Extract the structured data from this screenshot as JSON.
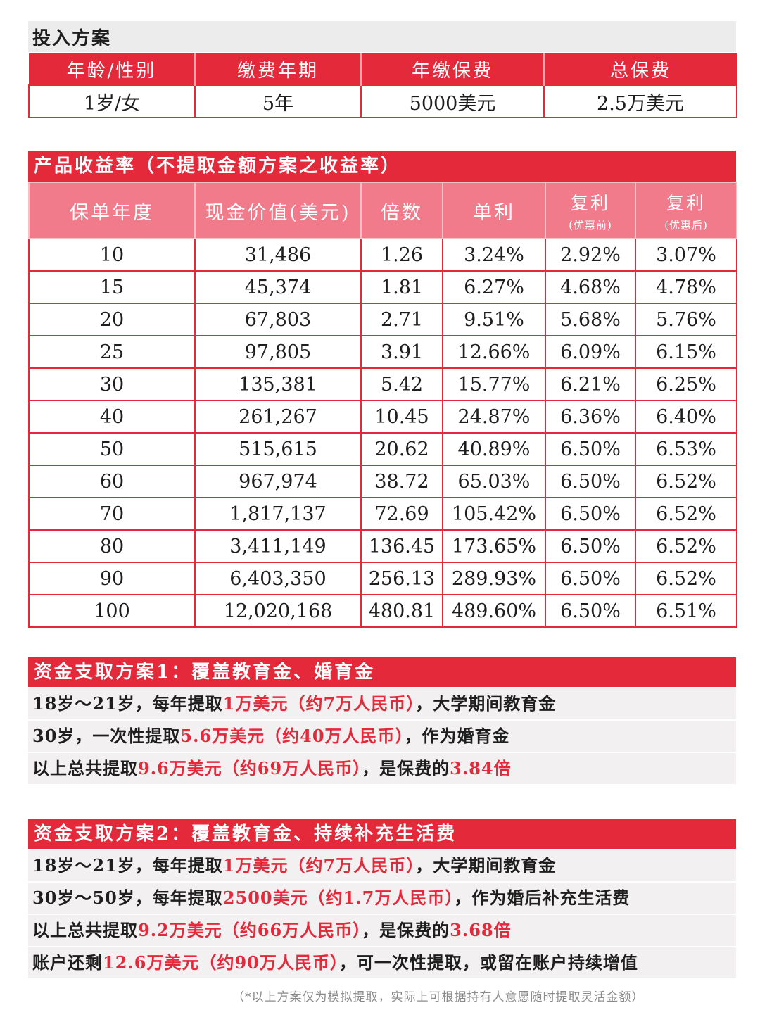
{
  "investment": {
    "title": "投入方案",
    "headers": [
      "年龄/性别",
      "缴费年期",
      "年缴保费",
      "总保费"
    ],
    "values": [
      "1岁/女",
      "5年",
      "5000美元",
      "2.5万美元"
    ]
  },
  "returns": {
    "title": "产品收益率（不提取金额方案之收益率）",
    "headers": {
      "year": "保单年度",
      "cash": "现金价值(美元)",
      "multiple": "倍数",
      "simple": "单利",
      "compound_before": "复利",
      "compound_before_sub": "(优惠前)",
      "compound_after": "复利",
      "compound_after_sub": "(优惠后)"
    },
    "rows": [
      [
        "10",
        "31,486",
        "1.26",
        "3.24%",
        "2.92%",
        "3.07%"
      ],
      [
        "15",
        "45,374",
        "1.81",
        "6.27%",
        "4.68%",
        "4.78%"
      ],
      [
        "20",
        "67,803",
        "2.71",
        "9.51%",
        "5.68%",
        "5.76%"
      ],
      [
        "25",
        "97,805",
        "3.91",
        "12.66%",
        "6.09%",
        "6.15%"
      ],
      [
        "30",
        "135,381",
        "5.42",
        "15.77%",
        "6.21%",
        "6.25%"
      ],
      [
        "40",
        "261,267",
        "10.45",
        "24.87%",
        "6.36%",
        "6.40%"
      ],
      [
        "50",
        "515,615",
        "20.62",
        "40.89%",
        "6.50%",
        "6.53%"
      ],
      [
        "60",
        "967,974",
        "38.72",
        "65.03%",
        "6.50%",
        "6.52%"
      ],
      [
        "70",
        "1,817,137",
        "72.69",
        "105.42%",
        "6.50%",
        "6.52%"
      ],
      [
        "80",
        "3,411,149",
        "136.45",
        "173.65%",
        "6.50%",
        "6.52%"
      ],
      [
        "90",
        "6,403,350",
        "256.13",
        "289.93%",
        "6.50%",
        "6.52%"
      ],
      [
        "100",
        "12,020,168",
        "480.81",
        "489.60%",
        "6.50%",
        "6.51%"
      ]
    ]
  },
  "plan1": {
    "title": "资金支取方案1：覆盖教育金、婚育金",
    "lines": [
      {
        "a": "18岁～21岁，每年提取",
        "b": "1万美元（约7万人民币）",
        "c": "，大学期间教育金"
      },
      {
        "a": "30岁，一次性提取",
        "b": "5.6万美元（约40万人民币）",
        "c": "，作为婚育金"
      },
      {
        "a": "以上总共提取",
        "b": "9.6万美元（约69万人民币）",
        "c": "，是保费的",
        "d": "3.84倍"
      }
    ]
  },
  "plan2": {
    "title": "资金支取方案2：覆盖教育金、持续补充生活费",
    "lines": [
      {
        "a": "18岁～21岁，每年提取",
        "b": "1万美元（约7万人民币）",
        "c": "，大学期间教育金"
      },
      {
        "a": "30岁～50岁，每年提取",
        "b": "2500美元（约1.7万人民币）",
        "c": "，作为婚后补充生活费"
      },
      {
        "a": "以上总共提取",
        "b": "9.2万美元（约66万人民币）",
        "c": "，是保费的",
        "d": "3.68倍"
      },
      {
        "a": "账户还剩",
        "b": "12.6万美元（约90万人民币）",
        "c": "，可一次性提取，或留在账户持续增值"
      }
    ]
  },
  "note": "（*以上方案仅为模拟提取，实际上可根据持有人意愿随时提取灵活金额）",
  "colors": {
    "accent": "#e4293b",
    "header_pink": "#f17a8b",
    "row_grey": "#f2f0f0"
  }
}
